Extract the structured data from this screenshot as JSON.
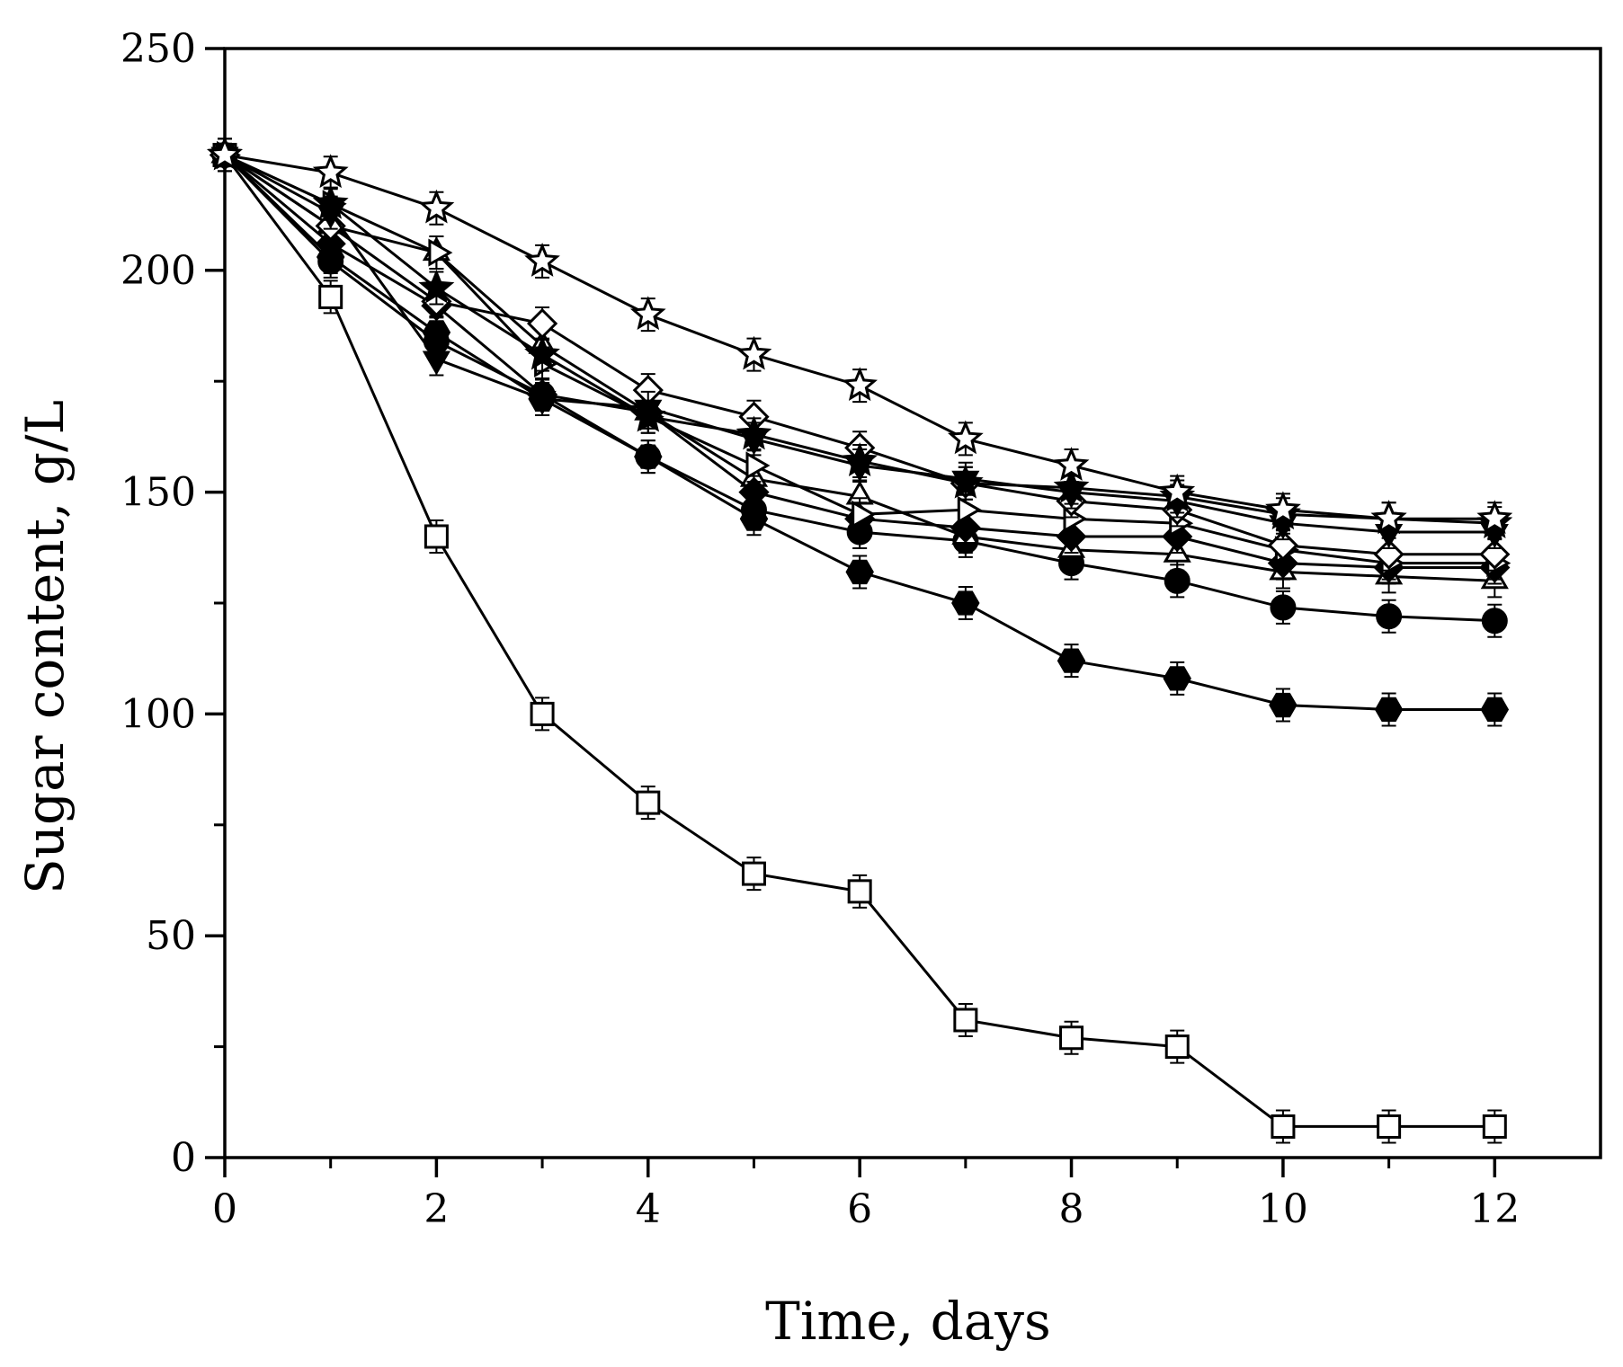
{
  "chart_data": {
    "type": "line",
    "title": "",
    "xlabel": "Time, days",
    "ylabel": "Sugar content, g/L",
    "xlim": [
      0,
      13
    ],
    "ylim": [
      0,
      250
    ],
    "x_ticks": [
      0,
      2,
      4,
      6,
      8,
      10,
      12
    ],
    "x_tick_labels": [
      "0",
      "2",
      "4",
      "6",
      "8",
      "10",
      "12"
    ],
    "y_ticks": [
      0,
      50,
      100,
      150,
      200,
      250
    ],
    "y_tick_labels": [
      "0",
      "50",
      "100",
      "150",
      "200",
      "250"
    ],
    "grid": false,
    "x": [
      0,
      1,
      2,
      3,
      4,
      5,
      6,
      7,
      8,
      9,
      10,
      11,
      12
    ],
    "series": [
      {
        "name": "open square",
        "marker": "square-open",
        "values": [
          226,
          194,
          140,
          100,
          80,
          64,
          60,
          31,
          27,
          25,
          7,
          7,
          7
        ]
      },
      {
        "name": "filled hexagon",
        "marker": "hexagon-filled",
        "values": [
          226,
          203,
          186,
          171,
          158,
          144,
          132,
          125,
          112,
          108,
          102,
          101,
          101
        ]
      },
      {
        "name": "filled circle",
        "marker": "circle-filled",
        "values": [
          226,
          202,
          184,
          172,
          158,
          146,
          141,
          139,
          134,
          130,
          124,
          122,
          121
        ]
      },
      {
        "name": "open up triangle",
        "marker": "triangle-open",
        "values": [
          226,
          210,
          204,
          183,
          168,
          153,
          149,
          140,
          137,
          136,
          132,
          131,
          130
        ]
      },
      {
        "name": "filled diamond",
        "marker": "diamond-filled",
        "values": [
          226,
          206,
          192,
          172,
          168,
          150,
          144,
          142,
          140,
          140,
          134,
          133,
          133
        ]
      },
      {
        "name": "open right triangle",
        "marker": "tri-right-open",
        "values": [
          226,
          215,
          204,
          179,
          167,
          156,
          145,
          146,
          144,
          143,
          137,
          134,
          134
        ]
      },
      {
        "name": "open diamond",
        "marker": "diamond-open",
        "values": [
          226,
          210,
          193,
          188,
          173,
          167,
          160,
          152,
          148,
          146,
          138,
          136,
          136
        ]
      },
      {
        "name": "filled down triangle",
        "marker": "tri-down-filled",
        "values": [
          226,
          213,
          180,
          171,
          169,
          162,
          156,
          153,
          150,
          148,
          143,
          141,
          141
        ]
      },
      {
        "name": "filled star",
        "marker": "star-filled",
        "values": [
          226,
          215,
          196,
          181,
          167,
          163,
          157,
          152,
          151,
          149,
          145,
          144,
          143
        ]
      },
      {
        "name": "open star",
        "marker": "star-open",
        "values": [
          226,
          222,
          214,
          202,
          190,
          181,
          174,
          162,
          156,
          150,
          146,
          144,
          144
        ]
      }
    ]
  }
}
